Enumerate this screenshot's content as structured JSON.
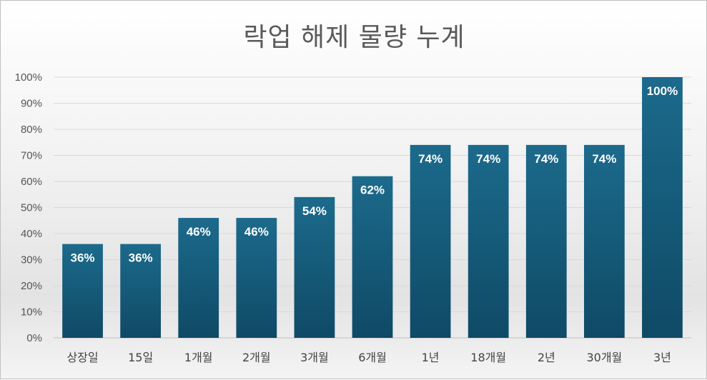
{
  "chart_data": {
    "type": "bar",
    "title": "락업 해제 물량 누계",
    "categories": [
      "상장일",
      "15일",
      "1개월",
      "2개월",
      "3개월",
      "6개월",
      "1년",
      "18개월",
      "2년",
      "30개월",
      "3년"
    ],
    "values": [
      36,
      36,
      46,
      46,
      54,
      62,
      74,
      74,
      74,
      74,
      100
    ],
    "data_labels": [
      "36%",
      "36%",
      "46%",
      "46%",
      "54%",
      "62%",
      "74%",
      "74%",
      "74%",
      "74%",
      "100%"
    ],
    "yticks": [
      "0%",
      "10%",
      "20%",
      "30%",
      "40%",
      "50%",
      "60%",
      "70%",
      "80%",
      "90%",
      "100%"
    ],
    "ylim": [
      0,
      100
    ],
    "grid": true,
    "legend": "none",
    "bar_color_top": "#1c6a8c",
    "bar_color_bottom": "#0f4a66"
  }
}
